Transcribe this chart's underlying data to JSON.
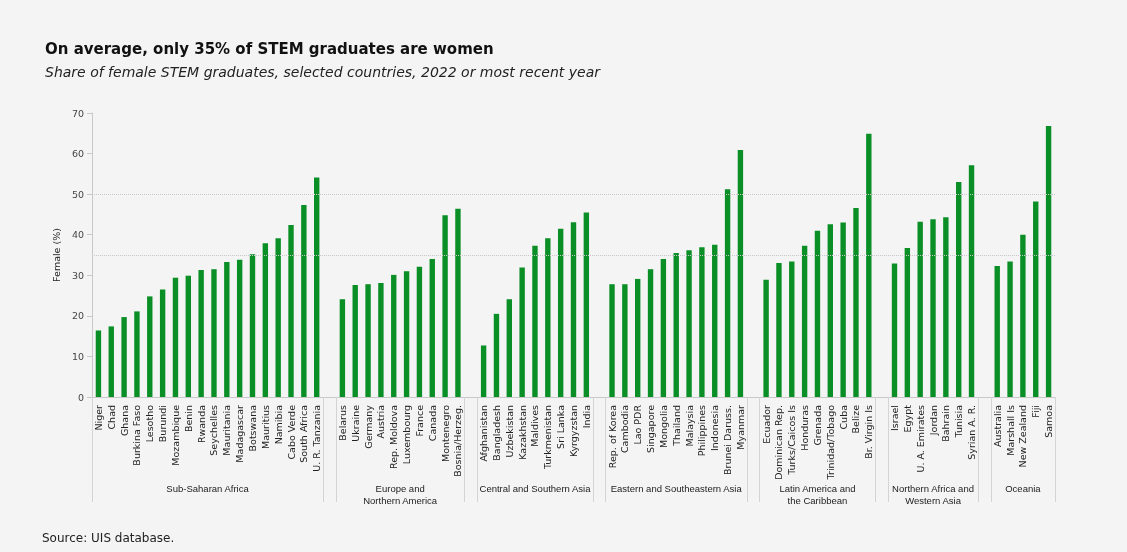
{
  "chart_data": {
    "type": "bar",
    "title": "On average, only 35% of STEM graduates are women",
    "subtitle": "Share of female STEM graduates, selected countries, 2022 or most recent year",
    "ylabel": "Female (%)",
    "categories": [
      "Niger",
      "Chad",
      "Ghana",
      "Burkina Faso",
      "Lesotho",
      "Burundi",
      "Mozambique",
      "Benin",
      "Rwanda",
      "Seychelles",
      "Mauritania",
      "Madagascar",
      "Botswana",
      "Mauritius",
      "Namibia",
      "Cabo Verde",
      "South Africa",
      "U. R. Tanzania",
      null,
      "Belarus",
      "Ukraine",
      "Germany",
      "Austria",
      "Rep. Moldova",
      "Luxembourg",
      "France",
      "Canada",
      "Montenegro",
      "Bosnia/Herzeg.",
      null,
      "Afghanistan",
      "Bangladesh",
      "Uzbekistan",
      "Kazakhstan",
      "Maldives",
      "Turkmenistan",
      "Sri Lanka",
      "Kyrgyzstan",
      "India",
      null,
      "Rep. of Korea",
      "Cambodia",
      "Lao PDR",
      "Singapore",
      "Mongolia",
      "Thailand",
      "Malaysia",
      "Philippines",
      "Indonesia",
      "Brunei Daruss.",
      "Myanmar",
      null,
      "Ecuador",
      "Dominican Rep.",
      "Turks/Caicos Is",
      "Honduras",
      "Grenada",
      "Trinidad/Tobago",
      "Cuba",
      "Belize",
      "Br. Virgin Is",
      null,
      "Israel",
      "Egypt",
      "U. A. Emirates",
      "Jordan",
      "Bahrain",
      "Tunisia",
      "Syrian A. R.",
      null,
      "Australia",
      "Marshall Is",
      "New Zealand",
      "Fiji",
      "Samoa"
    ],
    "values": [
      16.4,
      17.4,
      19.7,
      21.1,
      24.8,
      26.5,
      29.4,
      29.9,
      31.3,
      31.5,
      33.3,
      33.8,
      35.2,
      37.9,
      39.1,
      42.4,
      47.3,
      54.1,
      null,
      24.1,
      27.6,
      27.8,
      28.1,
      30.1,
      31.0,
      32.1,
      34.0,
      44.8,
      46.4,
      null,
      12.7,
      20.5,
      24.1,
      31.9,
      37.3,
      39.1,
      41.5,
      43.1,
      45.5,
      null,
      27.8,
      27.8,
      29.1,
      31.5,
      34.0,
      35.5,
      36.2,
      36.9,
      37.5,
      51.2,
      60.9,
      null,
      28.9,
      33.0,
      33.4,
      37.3,
      41.0,
      42.6,
      43.0,
      46.6,
      64.9,
      null,
      32.9,
      36.7,
      43.2,
      43.8,
      44.3,
      53.0,
      57.1,
      null,
      32.3,
      33.4,
      40.0,
      48.2,
      66.8
    ],
    "color": "#0a8f26",
    "ylim": [
      0,
      70
    ],
    "yticks": [
      0,
      10,
      20,
      30,
      40,
      50,
      60,
      70
    ],
    "grid": false,
    "ref_lines": [
      {
        "axis": "y",
        "value": 35,
        "label": null,
        "color": "#c8c8c8",
        "line_style": "dotted"
      },
      {
        "axis": "y",
        "value": 50,
        "label": null,
        "color": "#c8c8c8",
        "line_style": "dotted"
      }
    ],
    "annotations": [
      "Sub-Saharan Africa",
      "Europe and\nNorthern America",
      "Central and Southern Asia",
      "Eastern and Southeastern Asia",
      "Latin America and\nthe Caribbean",
      "Northern Africa and\nWestern Asia",
      "Oceania",
      "Source: UIS database."
    ]
  }
}
